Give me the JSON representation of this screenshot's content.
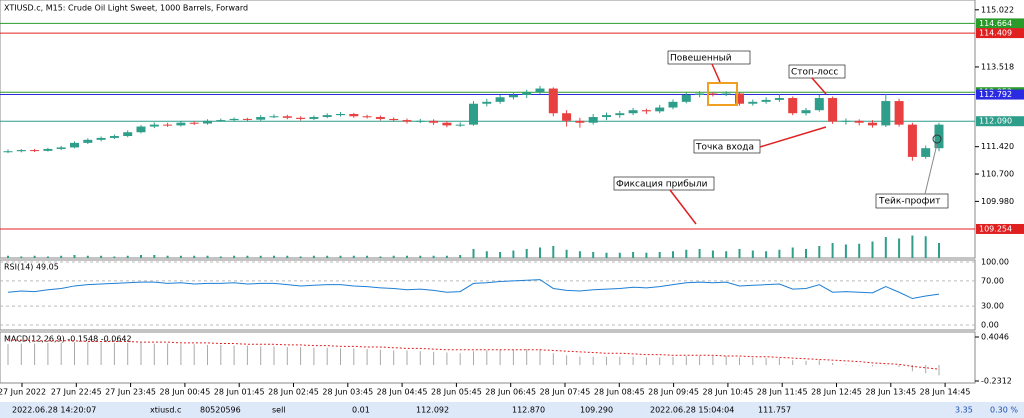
{
  "header": {
    "title": "XTIUSD.c, M15:  Crude Oil Light Sweet, 1000 Barrels, Forward"
  },
  "chart_data": {
    "type": "candlestick",
    "ylim": [
      108.49,
      115.28
    ],
    "yticks": [
      115.022,
      113.518,
      {
        "value": 111.42,
        "label": "111.420"
      },
      {
        "value": 110.7,
        "label": "110.700"
      },
      {
        "value": 109.98,
        "label": "109.980"
      }
    ],
    "up_color": "#2e9e8a",
    "down_color": "#e84040",
    "levels": [
      {
        "value": 114.664,
        "color": "#2a9a2a"
      },
      {
        "value": 114.409,
        "color": "#e02020"
      },
      {
        "value": 112.853,
        "color": "#2a9a2a"
      },
      {
        "value": 112.792,
        "color": "#2a2ae0"
      },
      {
        "value": {
          "value": 112.09,
          "label": "112.090"
        },
        "color": "#2e9e8a"
      },
      {
        "value": 109.254,
        "color": "#e02020"
      }
    ],
    "candles": [
      [
        111.28,
        111.35,
        111.25,
        111.3
      ],
      [
        111.3,
        111.36,
        111.27,
        111.33
      ],
      [
        111.33,
        111.36,
        111.28,
        111.31
      ],
      [
        111.31,
        111.39,
        111.29,
        111.36
      ],
      [
        111.36,
        111.44,
        111.33,
        111.4
      ],
      [
        111.4,
        111.56,
        111.38,
        111.52
      ],
      [
        111.52,
        111.64,
        111.49,
        111.6
      ],
      [
        111.6,
        111.69,
        111.56,
        111.65
      ],
      [
        111.65,
        111.74,
        111.62,
        111.7
      ],
      [
        111.7,
        111.85,
        111.67,
        111.8
      ],
      [
        111.8,
        111.99,
        111.77,
        111.95
      ],
      [
        111.95,
        112.06,
        111.91,
        112.0
      ],
      [
        112.0,
        112.05,
        111.94,
        111.98
      ],
      [
        111.98,
        112.1,
        111.95,
        112.05
      ],
      [
        112.05,
        112.09,
        111.99,
        112.03
      ],
      [
        112.03,
        112.14,
        112.0,
        112.1
      ],
      [
        112.1,
        112.16,
        112.07,
        112.12
      ],
      [
        112.12,
        112.19,
        112.09,
        112.15
      ],
      [
        112.15,
        112.18,
        112.09,
        112.13
      ],
      [
        112.13,
        112.25,
        112.1,
        112.2
      ],
      [
        112.2,
        112.27,
        112.17,
        112.22
      ],
      [
        112.22,
        112.26,
        112.14,
        112.18
      ],
      [
        112.18,
        112.22,
        112.11,
        112.15
      ],
      [
        112.15,
        112.24,
        112.12,
        112.2
      ],
      [
        112.2,
        112.3,
        112.17,
        112.25
      ],
      [
        112.25,
        112.33,
        112.21,
        112.28
      ],
      [
        112.28,
        112.31,
        112.18,
        112.22
      ],
      [
        112.22,
        112.26,
        112.16,
        112.2
      ],
      [
        112.2,
        112.24,
        112.11,
        112.15
      ],
      [
        112.15,
        112.19,
        112.08,
        112.12
      ],
      [
        112.12,
        112.16,
        112.03,
        112.08
      ],
      [
        112.08,
        112.15,
        112.04,
        112.1
      ],
      [
        112.1,
        112.14,
        111.99,
        112.05
      ],
      [
        112.05,
        112.09,
        111.93,
        111.98
      ],
      [
        111.98,
        112.06,
        111.94,
        112.0
      ],
      [
        112.0,
        112.62,
        111.97,
        112.55
      ],
      [
        112.55,
        112.68,
        112.48,
        112.6
      ],
      [
        112.6,
        112.78,
        112.55,
        112.72
      ],
      [
        112.72,
        112.84,
        112.66,
        112.78
      ],
      [
        112.78,
        112.92,
        112.7,
        112.85
      ],
      [
        112.85,
        113.02,
        112.8,
        112.95
      ],
      [
        112.95,
        112.98,
        112.22,
        112.3
      ],
      [
        112.3,
        112.38,
        111.95,
        112.1
      ],
      [
        112.1,
        112.18,
        111.92,
        112.05
      ],
      [
        112.05,
        112.28,
        112.0,
        112.2
      ],
      [
        112.2,
        112.32,
        112.12,
        112.25
      ],
      [
        112.25,
        112.36,
        112.18,
        112.3
      ],
      [
        112.3,
        112.44,
        112.25,
        112.38
      ],
      [
        112.38,
        112.42,
        112.28,
        112.35
      ],
      [
        112.35,
        112.52,
        112.3,
        112.45
      ],
      [
        112.45,
        112.66,
        112.4,
        112.6
      ],
      [
        112.6,
        112.84,
        112.56,
        112.78
      ],
      [
        112.78,
        112.88,
        112.72,
        112.82
      ],
      [
        112.82,
        112.86,
        112.74,
        112.8
      ],
      [
        112.8,
        112.88,
        112.75,
        112.82
      ],
      [
        112.82,
        112.86,
        112.5,
        112.55
      ],
      [
        112.55,
        112.66,
        112.5,
        112.6
      ],
      [
        112.6,
        112.72,
        112.55,
        112.65
      ],
      [
        112.65,
        112.8,
        112.6,
        112.7
      ],
      [
        112.7,
        112.74,
        112.25,
        112.3
      ],
      [
        112.3,
        112.44,
        112.24,
        112.38
      ],
      [
        112.38,
        112.78,
        112.34,
        112.7
      ],
      [
        112.7,
        112.74,
        112.02,
        112.08
      ],
      [
        112.08,
        112.16,
        112.0,
        112.1
      ],
      [
        112.1,
        112.14,
        111.98,
        112.05
      ],
      [
        112.05,
        112.12,
        111.92,
        111.98
      ],
      [
        111.98,
        112.8,
        111.94,
        112.62
      ],
      [
        112.62,
        112.68,
        111.95,
        112.0
      ],
      [
        112.0,
        112.05,
        111.05,
        111.15
      ],
      [
        111.15,
        111.45,
        111.1,
        111.38
      ],
      [
        111.38,
        112.05,
        111.3,
        112.0
      ]
    ],
    "volume_lim": [
      0,
      40
    ],
    "volume": [
      3,
      2,
      3,
      2,
      3,
      4,
      3,
      3,
      2,
      3,
      4,
      4,
      3,
      3,
      3,
      3,
      2,
      3,
      3,
      3,
      3,
      3,
      2,
      3,
      3,
      3,
      3,
      3,
      2,
      3,
      3,
      3,
      3,
      3,
      4,
      12,
      9,
      8,
      10,
      12,
      14,
      16,
      11,
      9,
      8,
      7,
      7,
      8,
      7,
      8,
      9,
      11,
      12,
      10,
      9,
      12,
      10,
      9,
      11,
      14,
      12,
      16,
      20,
      18,
      19,
      22,
      28,
      26,
      30,
      29,
      20
    ],
    "rsi": {
      "label": "RSI(14) 49.05",
      "ylim": [
        0,
        100
      ],
      "yticks": [
        {
          "value": 100,
          "label": "100.00"
        },
        {
          "value": 70,
          "label": "70.00"
        },
        {
          "value": 30,
          "label": "30.00"
        },
        {
          "value": 0,
          "label": "0.00"
        }
      ],
      "values": [
        52,
        54,
        53,
        56,
        58,
        62,
        64,
        65,
        66,
        67,
        68,
        68,
        66,
        67,
        65,
        66,
        66,
        67,
        65,
        66,
        66,
        64,
        62,
        63,
        64,
        64,
        62,
        61,
        59,
        58,
        56,
        57,
        55,
        52,
        53,
        66,
        67,
        69,
        70,
        71,
        72,
        58,
        55,
        54,
        56,
        57,
        58,
        60,
        59,
        61,
        64,
        67,
        68,
        67,
        68,
        62,
        63,
        64,
        65,
        57,
        58,
        64,
        52,
        53,
        52,
        51,
        61,
        52,
        42,
        46,
        49
      ]
    },
    "macd": {
      "label": "MACD(12,26,9) -0.1548 -0.0642",
      "ylim": [
        -0.2312,
        0.4046
      ],
      "yticks": [
        0.4046,
        -0.2312
      ],
      "histogram": [
        0.3,
        0.31,
        0.31,
        0.32,
        0.32,
        0.33,
        0.33,
        0.33,
        0.32,
        0.32,
        0.32,
        0.31,
        0.31,
        0.3,
        0.3,
        0.29,
        0.29,
        0.28,
        0.28,
        0.27,
        0.27,
        0.26,
        0.26,
        0.25,
        0.25,
        0.24,
        0.24,
        0.23,
        0.22,
        0.21,
        0.21,
        0.2,
        0.19,
        0.18,
        0.17,
        0.2,
        0.21,
        0.22,
        0.22,
        0.23,
        0.23,
        0.17,
        0.14,
        0.12,
        0.12,
        0.12,
        0.12,
        0.12,
        0.11,
        0.11,
        0.12,
        0.13,
        0.13,
        0.13,
        0.13,
        0.11,
        0.1,
        0.1,
        0.1,
        0.07,
        0.06,
        0.07,
        0.03,
        0.01,
        0.0,
        -0.02,
        0.0,
        -0.03,
        -0.09,
        -0.12,
        -0.15
      ],
      "signal": [
        0.36,
        0.36,
        0.35,
        0.35,
        0.35,
        0.35,
        0.34,
        0.34,
        0.34,
        0.34,
        0.33,
        0.33,
        0.33,
        0.32,
        0.32,
        0.32,
        0.31,
        0.31,
        0.3,
        0.3,
        0.3,
        0.29,
        0.29,
        0.28,
        0.28,
        0.27,
        0.27,
        0.26,
        0.26,
        0.25,
        0.24,
        0.24,
        0.23,
        0.22,
        0.22,
        0.22,
        0.22,
        0.22,
        0.22,
        0.22,
        0.22,
        0.21,
        0.2,
        0.19,
        0.18,
        0.17,
        0.17,
        0.16,
        0.15,
        0.15,
        0.14,
        0.14,
        0.14,
        0.14,
        0.13,
        0.13,
        0.12,
        0.12,
        0.11,
        0.1,
        0.09,
        0.08,
        0.07,
        0.06,
        0.05,
        0.03,
        0.02,
        0.01,
        -0.02,
        -0.04,
        -0.06
      ]
    },
    "time_labels": [
      "27 Jun 2022",
      "27 Jun 22:45",
      "27 Jun 23:45",
      "28 Jun 00:45",
      "28 Jun 01:45",
      "28 Jun 02:45",
      "28 Jun 03:45",
      "28 Jun 04:45",
      "28 Jun 05:45",
      "28 Jun 06:45",
      "28 Jun 07:45",
      "28 Jun 08:45",
      "28 Jun 09:45",
      "28 Jun 10:45",
      "28 Jun 11:45",
      "28 Jun 12:45",
      "28 Jun 13:45",
      "28 Jun 14:45"
    ]
  },
  "annotations": {
    "hanging_man": "Повешенный",
    "stop_loss": "Стоп-лосс",
    "entry": "Точка входа",
    "take_profit_fix": "Фиксация прибыли",
    "take_profit": "Тейк-профит"
  },
  "trade_row": [
    "2022.06.28 14:20:07",
    "xtiusd.c",
    "80520596",
    "sell",
    "0.01",
    "112.092",
    "112.870",
    "109.290",
    "2022.06.28 15:04:04",
    "111.757",
    "3.35",
    "0.30 %"
  ]
}
